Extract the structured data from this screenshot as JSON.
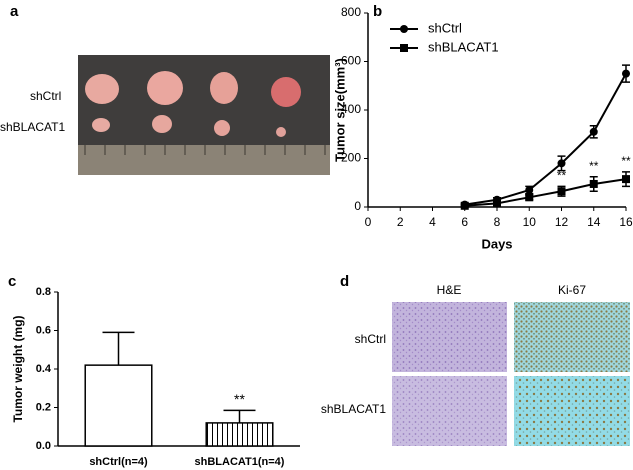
{
  "panel_labels": [
    "a",
    "b",
    "c",
    "d"
  ],
  "photo_panel": {
    "rows": [
      "shCtrl",
      "shBLACAT1"
    ]
  },
  "histology_panel": {
    "columns": [
      "H&E",
      "Ki-67"
    ],
    "rows": [
      "shCtrl",
      "shBLACAT1"
    ]
  },
  "chart_data": [
    {
      "type": "line",
      "x_label": "Days",
      "y_label": "Tumor size(mm³)",
      "x": [
        6,
        8,
        10,
        12,
        14,
        16
      ],
      "series": [
        {
          "name": "shCtrl",
          "color": "#000000",
          "marker": "circle",
          "values": [
            10,
            30,
            70,
            180,
            310,
            550
          ],
          "errors": [
            5,
            8,
            15,
            30,
            25,
            35
          ]
        },
        {
          "name": "shBLACAT1",
          "color": "#000000",
          "marker": "square",
          "values": [
            5,
            15,
            40,
            65,
            95,
            115
          ],
          "errors": [
            5,
            6,
            10,
            20,
            30,
            30
          ],
          "annotations": [
            null,
            null,
            null,
            "**",
            "**",
            "**"
          ]
        }
      ],
      "xlim": [
        0,
        16
      ],
      "xticks": [
        0,
        2,
        4,
        6,
        8,
        10,
        12,
        14,
        16
      ],
      "ylim": [
        0,
        800
      ],
      "yticks": [
        0,
        200,
        400,
        600,
        800
      ],
      "legend": "upper left"
    },
    {
      "type": "bar",
      "y_label": "Tumor weight (mg)",
      "categories": [
        "shCtrl(n=4)",
        "shBLACAT1(n=4)"
      ],
      "values": [
        0.42,
        0.12
      ],
      "errors": [
        0.17,
        0.065
      ],
      "hatch": [
        false,
        true
      ],
      "color": "#000000",
      "annotations": [
        null,
        "**"
      ],
      "ylim": [
        0,
        0.8
      ],
      "yticks": [
        {
          "value": 0,
          "label": "0.0"
        },
        0.2,
        0.4,
        0.6,
        0.8
      ]
    }
  ]
}
